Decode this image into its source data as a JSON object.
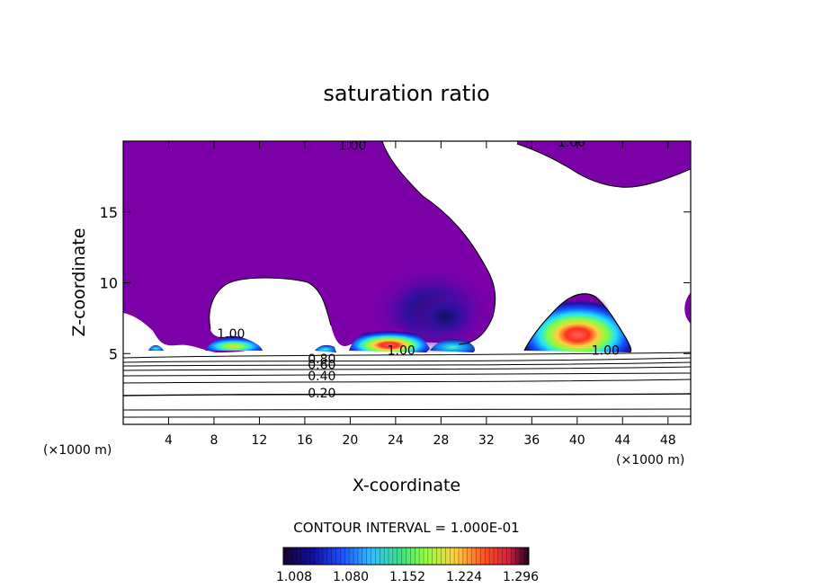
{
  "chart_data": {
    "type": "contour",
    "title": "saturation ratio",
    "xlabel": "X-coordinate",
    "ylabel": "Z-coordinate",
    "x_unit_left": "(×1000 m)",
    "x_unit_right": "(×1000 m)",
    "xlim": [
      0,
      50
    ],
    "ylim": [
      0,
      20
    ],
    "x_ticks": [
      4,
      8,
      12,
      16,
      20,
      24,
      28,
      32,
      36,
      40,
      44,
      48
    ],
    "y_ticks": [
      5,
      10,
      15
    ],
    "contour_labels": [
      {
        "text": "1.00",
        "x": 20.2,
        "z": 19.6
      },
      {
        "text": "1.00",
        "x": 39.5,
        "z": 19.8
      },
      {
        "text": "1.00",
        "x": 9.5,
        "z": 6.3
      },
      {
        "text": "1.00",
        "x": 24.5,
        "z": 5.1
      },
      {
        "text": "1.00",
        "x": 42.5,
        "z": 5.1
      },
      {
        "text": "0.80",
        "x": 17.5,
        "z": 4.5
      },
      {
        "text": "0.60",
        "x": 17.5,
        "z": 4.1
      },
      {
        "text": "0.40",
        "x": 17.5,
        "z": 3.3
      },
      {
        "text": "0.20",
        "x": 17.5,
        "z": 2.1
      }
    ],
    "contour_interval_label": "CONTOUR INTERVAL = 1.000E-01",
    "colorbar": {
      "min": 1.008,
      "max": 1.32,
      "tick_labels": [
        "1.008",
        "1.080",
        "1.152",
        "1.224",
        "1.296"
      ],
      "colors": [
        "#1a0030",
        "#1010a0",
        "#2050ff",
        "#30c0ff",
        "#40e080",
        "#90ff40",
        "#ffd040",
        "#ff5020",
        "#d02040",
        "#200020"
      ]
    },
    "fill_color": "#7b00a8",
    "supersaturation_regions": [
      {
        "x_center": 10,
        "z_center": 5.4,
        "peak": 1.25
      },
      {
        "x_center": 18,
        "z_center": 5.4,
        "peak": 1.1
      },
      {
        "x_center": 24,
        "z_center": 6.2,
        "peak": 1.3
      },
      {
        "x_center": 28.5,
        "z_center": 6.5,
        "peak": 1.06
      },
      {
        "x_center": 40.5,
        "z_center": 6.3,
        "peak": 1.3
      }
    ]
  }
}
